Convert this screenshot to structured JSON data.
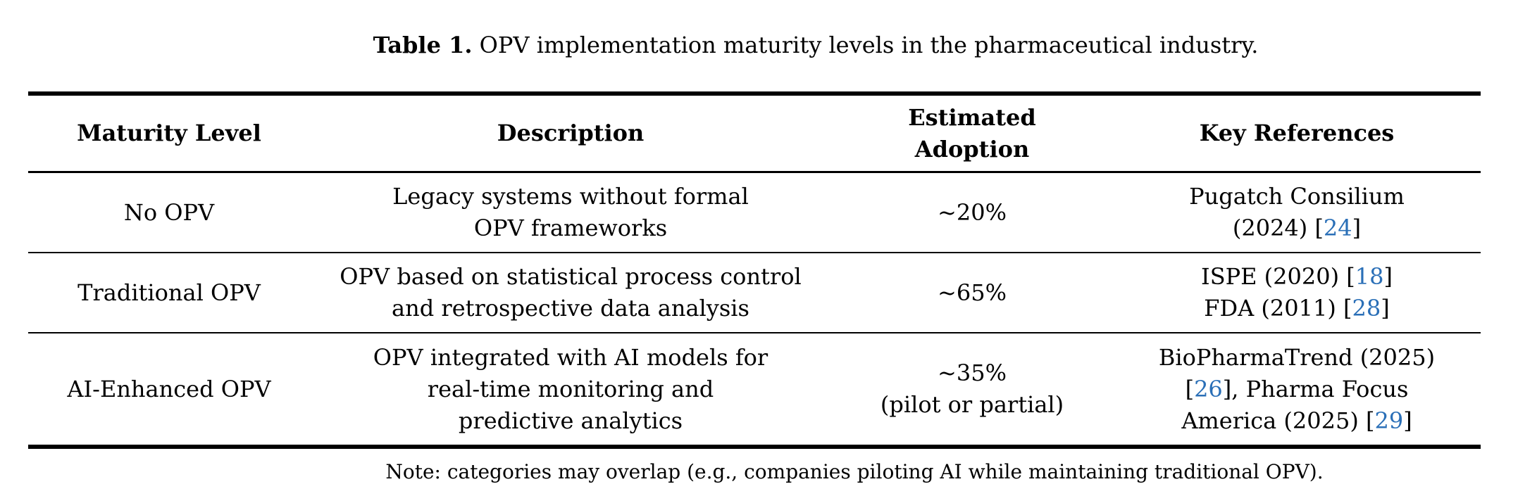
{
  "caption": {
    "label": "Table 1.",
    "text": " OPV implementation maturity levels in the pharmaceutical industry."
  },
  "header": {
    "col1": "Maturity Level",
    "col2": "Description",
    "col3_line1": "Estimated",
    "col3_line2": "Adoption",
    "col4": "Key References"
  },
  "rows": [
    {
      "maturity": "No OPV",
      "desc_line1": "Legacy systems without formal",
      "desc_line2": "OPV frameworks",
      "adoption_line1": "~20%",
      "ref": {
        "line1": "Pugatch Consilium",
        "line2_pre": "(2024) [",
        "line2_num": "24",
        "line2_post": "]"
      }
    },
    {
      "maturity": "Traditional OPV",
      "desc_line1": "OPV based on statistical process control",
      "desc_line2": "and retrospective data analysis",
      "adoption_line1": "~65%",
      "ref": {
        "line1_pre": "ISPE (2020) [",
        "line1_num": "18",
        "line1_post": "]",
        "line2_pre": "FDA (2011) [",
        "line2_num": "28",
        "line2_post": "]"
      }
    },
    {
      "maturity": "AI-Enhanced OPV",
      "desc_line1": "OPV integrated with AI models for",
      "desc_line2": "real-time monitoring and",
      "desc_line3": "predictive analytics",
      "adoption_line1": "~35%",
      "adoption_line2": "(pilot or partial)",
      "ref": {
        "line1": "BioPharmaTrend (2025)",
        "line2_pre": "[",
        "line2_num": "26",
        "line2_post": "], Pharma Focus",
        "line3_pre": "America (2025) [",
        "line3_num": "29",
        "line3_post": "]"
      }
    }
  ],
  "note": "Note: categories may overlap (e.g., companies piloting AI while maintaining traditional OPV).",
  "colors": {
    "text": "#000000",
    "link": "#2a6fb7",
    "rule": "#000000"
  }
}
